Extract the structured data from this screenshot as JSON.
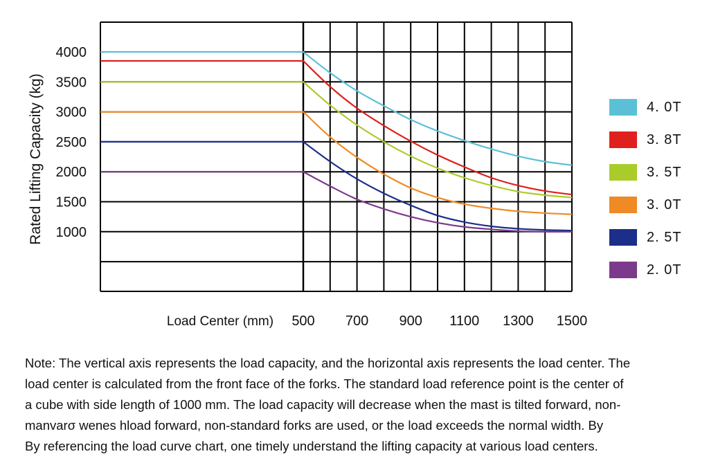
{
  "chart_data": {
    "type": "line",
    "ylabel": "Rated Lifting Capacity (kg)",
    "xlabel": "Load Center (mm)",
    "y_ticks": [
      "4000",
      "3500",
      "3000",
      "2500",
      "2000",
      "1500",
      "1000"
    ],
    "x_ticks": [
      "500",
      "700",
      "900",
      "1100",
      "1300",
      "1500"
    ],
    "x_range": [
      500,
      1500
    ],
    "grid": true,
    "legend_position": "right",
    "x": [
      500,
      600,
      700,
      800,
      900,
      1000,
      1100,
      1200,
      1300,
      1400,
      1500
    ],
    "series": [
      {
        "name": "4. 0T",
        "color": "#5bc0d6",
        "y": [
          4000,
          3650,
          3350,
          3100,
          2870,
          2680,
          2520,
          2380,
          2260,
          2170,
          2110
        ]
      },
      {
        "name": "3. 8T",
        "color": "#e0201c",
        "y": [
          3850,
          3420,
          3060,
          2770,
          2510,
          2280,
          2080,
          1900,
          1770,
          1680,
          1620
        ]
      },
      {
        "name": "3. 5T",
        "color": "#aacc2a",
        "y": [
          3500,
          3110,
          2780,
          2500,
          2260,
          2060,
          1900,
          1770,
          1670,
          1610,
          1570
        ]
      },
      {
        "name": "3. 0T",
        "color": "#ef8a24",
        "y": [
          3000,
          2580,
          2240,
          1960,
          1730,
          1570,
          1460,
          1390,
          1340,
          1310,
          1290
        ]
      },
      {
        "name": "2. 5T",
        "color": "#1b2f8a",
        "y": [
          2500,
          2170,
          1880,
          1640,
          1440,
          1270,
          1160,
          1090,
          1050,
          1030,
          1020
        ]
      },
      {
        "name": "2. 0T",
        "color": "#7c3a8c",
        "y": [
          2000,
          1760,
          1540,
          1380,
          1250,
          1150,
          1080,
          1040,
          1010,
          1000,
          1000
        ]
      }
    ]
  },
  "note": {
    "lines": [
      "Note: The vertical axis represents the load capacity, and the horizontal axis represents the load center. The",
      "load center is calculated from the front face of the forks. The standard load reference point is the center of",
      "a cube with side length of 1000 mm. The load capacity will decrease when the mast is tilted forward, non-",
      "manvarσ wenes hload  forward,  non-standard forks are used,  or the  load exceeds the normal width. By",
      "By referencing the load curve chart, one timely understand the lifting capacity at various load centers."
    ]
  }
}
